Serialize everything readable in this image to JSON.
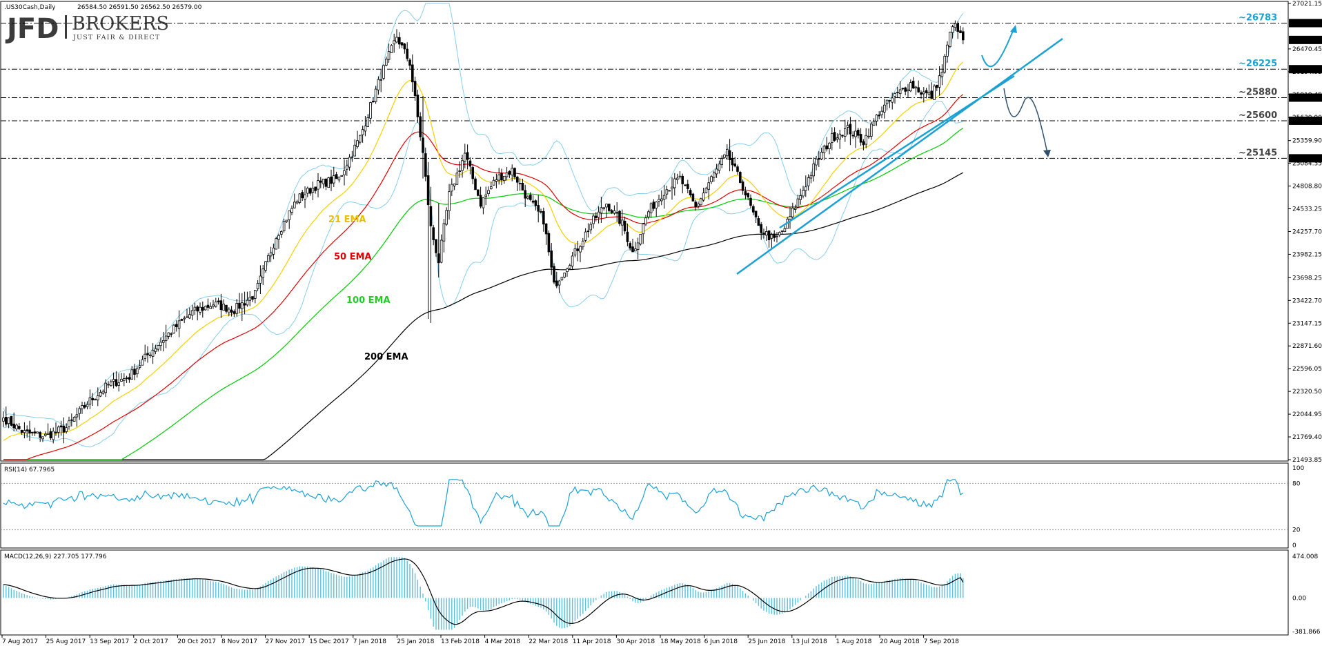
{
  "colors": {
    "candle": "#000000",
    "bollinger": "#87ceeb",
    "ema21": "#f5d000",
    "ema50": "#e00000",
    "ema100": "#00cc00",
    "ema200": "#000000",
    "trend": "#1ba1d4",
    "level_label": "#1ba1d4",
    "rsi": "#1ba1d4",
    "macd_hist": "#5bc0de",
    "macd_signal": "#000000"
  },
  "header": {
    "instrument": ".US30Cash,Daily",
    "ohlc": "26584.50 26591.50 26562.50 26579.00"
  },
  "logo": {
    "mark": "JFD",
    "brand": "BROKERS",
    "tagline": "JUST FAIR & DIRECT"
  },
  "chart_data": {
    "type": "candlestick",
    "price_axis": {
      "range": [
        21493.85,
        27021.15
      ],
      "ticks": [
        "27021.15",
        "26470.45",
        "26194.95",
        "25919.45",
        "25639.90",
        "25359.90",
        "25084.35",
        "24808.80",
        "24533.25",
        "24257.70",
        "23982.15",
        "23698.25",
        "23422.70",
        "23147.15",
        "22871.60",
        "22596.05",
        "22320.50",
        "22044.95",
        "21769.40",
        "21493.85"
      ],
      "markers": [
        {
          "label": "26783.00",
          "value": 26783
        },
        {
          "label": "26579.00",
          "value": 26579
        },
        {
          "label": "26225.00",
          "value": 26225
        },
        {
          "label": "25880.00",
          "value": 25880
        },
        {
          "label": "25600.00",
          "value": 25600
        },
        {
          "label": "25145.00",
          "value": 25145
        }
      ]
    },
    "levels": [
      {
        "label": "~26783",
        "value": 26783
      },
      {
        "label": "~26225",
        "value": 26225
      },
      {
        "label": "~25880",
        "value": 25880
      },
      {
        "label": "~25600",
        "value": 25600
      },
      {
        "label": "~25145",
        "value": 25145
      }
    ],
    "ema_labels": [
      {
        "label": "21 EMA",
        "key": "ema21"
      },
      {
        "label": "50 EMA",
        "key": "ema50"
      },
      {
        "label": "100 EMA",
        "key": "ema100"
      },
      {
        "label": "200 EMA",
        "key": "ema200"
      }
    ],
    "x_axis_labels": [
      "7 Aug 2017",
      "25 Aug 2017",
      "13 Sep 2017",
      "2 Oct 2017",
      "20 Oct 2017",
      "8 Nov 2017",
      "27 Nov 2017",
      "15 Dec 2017",
      "7 Jan 2018",
      "25 Jan 2018",
      "13 Feb 2018",
      "4 Mar 2018",
      "22 Mar 2018",
      "11 Apr 2018",
      "30 Apr 2018",
      "18 May 2018",
      "6 Jun 2018",
      "25 Jun 2018",
      "13 Jul 2018",
      "1 Aug 2018",
      "20 Aug 2018",
      "7 Sep 2018"
    ],
    "close_anchors": [
      [
        0,
        22000
      ],
      [
        8,
        21820
      ],
      [
        16,
        21780
      ],
      [
        24,
        21880
      ],
      [
        32,
        22180
      ],
      [
        40,
        22400
      ],
      [
        48,
        22500
      ],
      [
        56,
        22800
      ],
      [
        64,
        23050
      ],
      [
        72,
        23280
      ],
      [
        80,
        23380
      ],
      [
        88,
        23310
      ],
      [
        96,
        23500
      ],
      [
        104,
        24200
      ],
      [
        112,
        24650
      ],
      [
        120,
        24830
      ],
      [
        128,
        24900
      ],
      [
        136,
        25400
      ],
      [
        144,
        26150
      ],
      [
        150,
        26620
      ],
      [
        155,
        26300
      ],
      [
        160,
        25200
      ],
      [
        163,
        24300
      ],
      [
        166,
        23900
      ],
      [
        170,
        24700
      ],
      [
        176,
        25200
      ],
      [
        182,
        24600
      ],
      [
        188,
        24900
      ],
      [
        194,
        25000
      ],
      [
        200,
        24650
      ],
      [
        206,
        24400
      ],
      [
        210,
        23600
      ],
      [
        214,
        23800
      ],
      [
        218,
        24000
      ],
      [
        224,
        24350
      ],
      [
        230,
        24600
      ],
      [
        236,
        24350
      ],
      [
        240,
        24000
      ],
      [
        246,
        24500
      ],
      [
        252,
        24750
      ],
      [
        258,
        24900
      ],
      [
        264,
        24550
      ],
      [
        270,
        24900
      ],
      [
        276,
        25200
      ],
      [
        282,
        24800
      ],
      [
        288,
        24300
      ],
      [
        294,
        24150
      ],
      [
        298,
        24300
      ],
      [
        304,
        24700
      ],
      [
        310,
        25100
      ],
      [
        316,
        25400
      ],
      [
        322,
        25500
      ],
      [
        328,
        25350
      ],
      [
        334,
        25700
      ],
      [
        340,
        25900
      ],
      [
        346,
        26050
      ],
      [
        350,
        25950
      ],
      [
        354,
        25900
      ],
      [
        358,
        26200
      ],
      [
        360,
        26500
      ],
      [
        362,
        26783
      ],
      [
        366,
        26579
      ]
    ],
    "rsi": {
      "label": "RSI(14) 67.7965",
      "ticks": [
        "100",
        "80",
        "20",
        "0"
      ],
      "levels": [
        80,
        20
      ],
      "range": [
        0,
        100
      ],
      "current": 67.7965
    },
    "macd": {
      "label": "MACD(12,26,9) 227.705 177.796",
      "ticks": [
        "474.008",
        "0.00",
        "-381.866"
      ],
      "range": [
        -381.866,
        474.008
      ],
      "current_macd": 227.705,
      "current_signal": 177.796
    }
  }
}
